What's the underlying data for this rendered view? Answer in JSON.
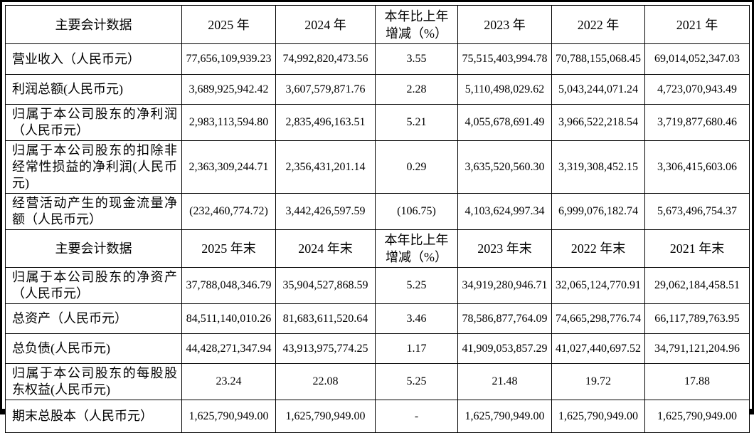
{
  "colors": {
    "border": "#000000",
    "background": "#ffffff",
    "text": "#000000"
  },
  "table": {
    "rows": [
      {
        "type": "header",
        "cells": [
          "主要会计数据",
          "2025 年",
          "2024 年",
          "本年比上年增减（%）",
          "2023 年",
          "2022 年",
          "2021 年"
        ]
      },
      {
        "type": "data",
        "cells": [
          "营业收入（人民币元）",
          "77,656,109,939.23",
          "74,992,820,473.56",
          "3.55",
          "75,515,403,994.78",
          "70,788,155,068.45",
          "69,014,052,347.03"
        ]
      },
      {
        "type": "data",
        "cells": [
          "利润总额(人民币元)",
          "3,689,925,942.42",
          "3,607,579,871.76",
          "2.28",
          "5,110,498,029.62",
          "5,043,244,071.24",
          "4,723,070,943.49"
        ]
      },
      {
        "type": "data",
        "cells": [
          "归属于本公司股东的净利润（人民币元）",
          "2,983,113,594.80",
          "2,835,496,163.51",
          "5.21",
          "4,055,678,691.49",
          "3,966,522,218.54",
          "3,719,877,680.46"
        ]
      },
      {
        "type": "data",
        "cells": [
          "归属于本公司股东的扣除非经常性损益的净利润(人民币元)",
          "2,363,309,244.71",
          "2,356,431,201.14",
          "0.29",
          "3,635,520,560.30",
          "3,319,308,452.15",
          "3,306,415,603.06"
        ]
      },
      {
        "type": "data",
        "cells": [
          "经营活动产生的现金流量净额（人民币元）",
          "(232,460,774.72)",
          "3,442,426,597.59",
          "(106.75)",
          "4,103,624,997.34",
          "6,999,076,182.74",
          "5,673,496,754.37"
        ]
      },
      {
        "type": "header",
        "cells": [
          "主要会计数据",
          "2025 年末",
          "2024 年末",
          "本年比上年增减（%）",
          "2023 年末",
          "2022 年末",
          "2021 年末"
        ]
      },
      {
        "type": "data",
        "cells": [
          "归属于本公司股东的净资产（人民币元）",
          "37,788,048,346.79",
          "35,904,527,868.59",
          "5.25",
          "34,919,280,946.71",
          "32,065,124,770.91",
          "29,062,184,458.51"
        ]
      },
      {
        "type": "data",
        "cells": [
          "总资产（人民币元）",
          "84,511,140,010.26",
          "81,683,611,520.64",
          "3.46",
          "78,586,877,764.09",
          "74,665,298,776.74",
          "66,117,789,763.95"
        ]
      },
      {
        "type": "data",
        "cells": [
          "总负债(人民币元)",
          "44,428,271,347.94",
          "43,913,975,774.25",
          "1.17",
          "41,909,053,857.29",
          "41,027,440,697.52",
          "34,791,121,204.96"
        ]
      },
      {
        "type": "data",
        "cells": [
          "归属于本公司股东的每股股东权益(人民币元)",
          "23.24",
          "22.08",
          "5.25",
          "21.48",
          "19.72",
          "17.88"
        ]
      },
      {
        "type": "data",
        "cells": [
          "期末总股本（人民币元）",
          "1,625,790,949.00",
          "1,625,790,949.00",
          "-",
          "1,625,790,949.00",
          "1,625,790,949.00",
          "1,625,790,949.00"
        ]
      }
    ]
  }
}
